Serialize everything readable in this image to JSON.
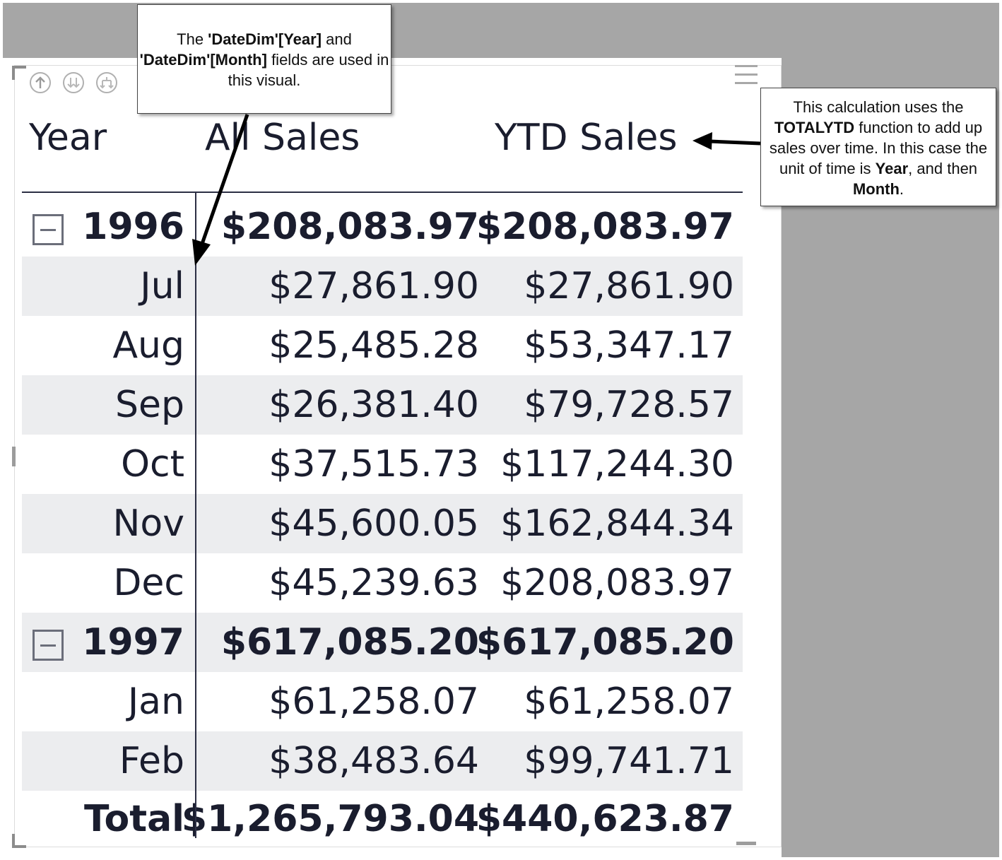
{
  "annotations": {
    "fields_callout": {
      "parts": [
        {
          "text": "The ",
          "bold": false
        },
        {
          "text": "'DateDim'[Year]",
          "bold": true
        },
        {
          "text": " and ",
          "bold": false
        },
        {
          "text": "'DateDim'[Month]",
          "bold": true
        },
        {
          "text": " fields are used in this visual.",
          "bold": false
        }
      ]
    },
    "calc_callout": {
      "parts": [
        {
          "text": "This calculation uses the ",
          "bold": false
        },
        {
          "text": "TOTALYTD",
          "bold": true
        },
        {
          "text": " function to add up sales over time. In this case the unit of time is ",
          "bold": false
        },
        {
          "text": "Year",
          "bold": true
        },
        {
          "text": ", and then ",
          "bold": false
        },
        {
          "text": "Month",
          "bold": true
        },
        {
          "text": ".",
          "bold": false
        }
      ]
    }
  },
  "toolbar": {
    "icons": [
      "drill-up-icon",
      "drill-down-all-icon",
      "expand-hierarchy-icon",
      "more-options-icon"
    ]
  },
  "matrix": {
    "headers": {
      "year": "Year",
      "all_sales": "All Sales",
      "ytd_sales": "YTD Sales"
    },
    "rows": [
      {
        "label": "1996",
        "all_sales": "$208,083.97",
        "ytd_sales": "$208,083.97",
        "level": "year",
        "expanded": true
      },
      {
        "label": "Jul",
        "all_sales": "$27,861.90",
        "ytd_sales": "$27,861.90",
        "level": "month"
      },
      {
        "label": "Aug",
        "all_sales": "$25,485.28",
        "ytd_sales": "$53,347.17",
        "level": "month"
      },
      {
        "label": "Sep",
        "all_sales": "$26,381.40",
        "ytd_sales": "$79,728.57",
        "level": "month"
      },
      {
        "label": "Oct",
        "all_sales": "$37,515.73",
        "ytd_sales": "$117,244.30",
        "level": "month"
      },
      {
        "label": "Nov",
        "all_sales": "$45,600.05",
        "ytd_sales": "$162,844.34",
        "level": "month"
      },
      {
        "label": "Dec",
        "all_sales": "$45,239.63",
        "ytd_sales": "$208,083.97",
        "level": "month"
      },
      {
        "label": "1997",
        "all_sales": "$617,085.20",
        "ytd_sales": "$617,085.20",
        "level": "year",
        "expanded": true
      },
      {
        "label": "Jan",
        "all_sales": "$61,258.07",
        "ytd_sales": "$61,258.07",
        "level": "month"
      },
      {
        "label": "Feb",
        "all_sales": "$38,483.64",
        "ytd_sales": "$99,741.71",
        "level": "month"
      }
    ],
    "total": {
      "label": "Total",
      "all_sales": "$1,265,793.04",
      "ytd_sales": "$440,623.87"
    }
  },
  "colors": {
    "text": "#1a1d2e",
    "row_shade": "#ecedef",
    "canvas_gray": "#a6a6a6"
  }
}
